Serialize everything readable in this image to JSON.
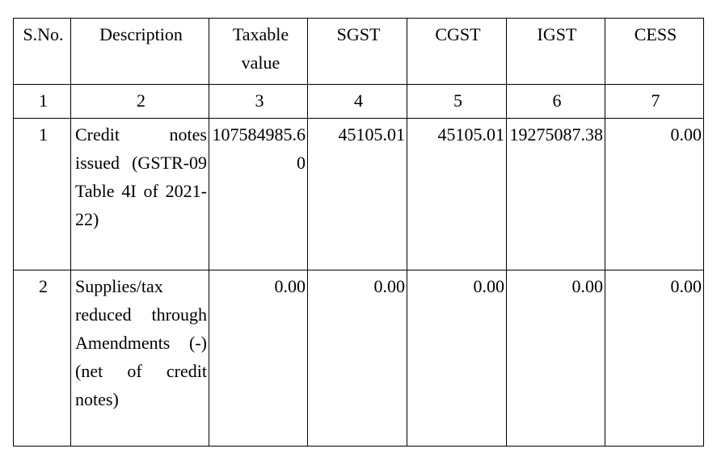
{
  "table": {
    "headers": [
      "S.No.",
      "Description",
      "Taxable value",
      "SGST",
      "CGST",
      "IGST",
      "CESS"
    ],
    "column_numbers": [
      "1",
      "2",
      "3",
      "4",
      "5",
      "6",
      "7"
    ],
    "rows": [
      {
        "sno": "1",
        "description": "Credit notes issued (GSTR-09 Table 4I of 2021-22)",
        "taxable_value": "107584985.60",
        "sgst": "45105.01",
        "cgst": "45105.01",
        "igst": "19275087.38",
        "cess": "0.00"
      },
      {
        "sno": "2",
        "description": "Supplies/tax reduced through Amendments (-) (net of credit notes)",
        "taxable_value": "0.00",
        "sgst": "0.00",
        "cgst": "0.00",
        "igst": "0.00",
        "cess": "0.00"
      }
    ]
  }
}
